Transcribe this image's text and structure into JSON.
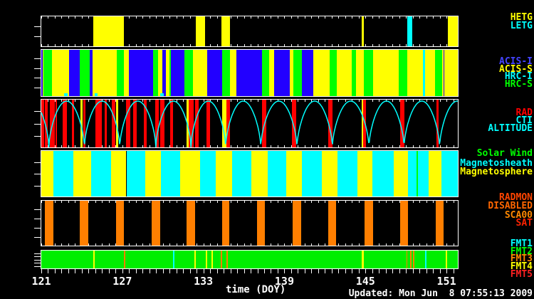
{
  "axis": {
    "xlabel": "time (DOY)",
    "x_start": 121,
    "x_end": 151.84,
    "minor_tick_step_days": 0.5,
    "label_ticks": [
      121,
      127,
      133,
      139,
      145,
      151
    ]
  },
  "footer": {
    "updated_text": "Updated: Mon Jun  8 07:55:13 2009"
  },
  "colors": {
    "background": "#000000",
    "frame": "#ffffff",
    "yellow": "#ffff00",
    "cyan": "#00ffff",
    "green": "#00ff00",
    "blue": "#2200ff",
    "red": "#ff0000",
    "orange": "#ff7f00",
    "fmt_green": "#00ee00"
  },
  "chart_data": {
    "type": "timeline-bands",
    "x_range": [
      121,
      151.84
    ],
    "panels": [
      {
        "id": "gratings",
        "labels": [
          {
            "text": "HETG",
            "color": "#ffff00"
          },
          {
            "text": "LETG",
            "color": "#00ffff"
          }
        ],
        "segments": [
          {
            "start": 124.84,
            "end": 127.12,
            "name": "HETG",
            "color": "#ffff00"
          },
          {
            "start": 132.42,
            "end": 133.12,
            "name": "HETG",
            "color": "#ffff00"
          },
          {
            "start": 134.33,
            "end": 134.97,
            "name": "HETG",
            "color": "#ffff00"
          },
          {
            "start": 144.72,
            "end": 144.86,
            "name": "HETG",
            "color": "#ffff00"
          },
          {
            "start": 148.12,
            "end": 148.49,
            "name": "LETG",
            "color": "#00ffff"
          },
          {
            "start": 151.1,
            "end": 151.84,
            "name": "HETG",
            "color": "#ffff00"
          }
        ]
      },
      {
        "id": "instruments",
        "labels": [
          {
            "text": "ACIS-I",
            "color": "#4444ff"
          },
          {
            "text": "ACIS-S",
            "color": "#ffff00"
          },
          {
            "text": "HRC-I",
            "color": "#00ffff"
          },
          {
            "text": "HRC-S",
            "color": "#00ff00"
          }
        ],
        "segments": [
          {
            "start": 121.0,
            "end": 121.09,
            "name": "ACIS-I",
            "color": "#2200ff"
          },
          {
            "start": 121.09,
            "end": 121.17,
            "name": "ACIS-S",
            "color": "#ffff00"
          },
          {
            "start": 121.17,
            "end": 121.78,
            "name": "HRC-S",
            "color": "#00ff00"
          },
          {
            "start": 121.78,
            "end": 123.04,
            "name": "ACIS-S",
            "color": "#ffff00"
          },
          {
            "start": 123.04,
            "end": 123.86,
            "name": "ACIS-I",
            "color": "#2200ff"
          },
          {
            "start": 123.86,
            "end": 124.6,
            "name": "HRC-S",
            "color": "#00ff00"
          },
          {
            "start": 124.6,
            "end": 124.8,
            "name": "ACIS-I",
            "color": "#2200ff"
          },
          {
            "start": 124.8,
            "end": 126.59,
            "name": "ACIS-S",
            "color": "#ffff00"
          },
          {
            "start": 126.59,
            "end": 127.09,
            "name": "HRC-S",
            "color": "#00ff00"
          },
          {
            "start": 127.09,
            "end": 127.5,
            "name": "ACIS-S",
            "color": "#ffff00"
          },
          {
            "start": 127.5,
            "end": 129.29,
            "name": "ACIS-I",
            "color": "#2200ff"
          },
          {
            "start": 129.29,
            "end": 129.65,
            "name": "HRC-S",
            "color": "#00ff00"
          },
          {
            "start": 129.65,
            "end": 129.98,
            "name": "ACIS-S",
            "color": "#ffff00"
          },
          {
            "start": 129.98,
            "end": 130.24,
            "name": "ACIS-I",
            "color": "#2200ff"
          },
          {
            "start": 130.24,
            "end": 130.48,
            "name": "ACIS-S",
            "color": "#ffff00"
          },
          {
            "start": 130.48,
            "end": 130.58,
            "name": "HRC-S",
            "color": "#00ff00"
          },
          {
            "start": 130.58,
            "end": 131.61,
            "name": "ACIS-I",
            "color": "#2200ff"
          },
          {
            "start": 131.61,
            "end": 132.23,
            "name": "HRC-S",
            "color": "#00ff00"
          },
          {
            "start": 132.23,
            "end": 133.3,
            "name": "ACIS-S",
            "color": "#ffff00"
          },
          {
            "start": 133.3,
            "end": 134.37,
            "name": "ACIS-I",
            "color": "#2200ff"
          },
          {
            "start": 134.37,
            "end": 134.95,
            "name": "HRC-S",
            "color": "#00ff00"
          },
          {
            "start": 134.95,
            "end": 135.47,
            "name": "ACIS-S",
            "color": "#ffff00"
          },
          {
            "start": 135.47,
            "end": 137.35,
            "name": "ACIS-I",
            "color": "#2200ff"
          },
          {
            "start": 137.35,
            "end": 137.89,
            "name": "HRC-S",
            "color": "#00ff00"
          },
          {
            "start": 137.89,
            "end": 138.25,
            "name": "ACIS-S",
            "color": "#ffff00"
          },
          {
            "start": 138.25,
            "end": 139.4,
            "name": "ACIS-I",
            "color": "#2200ff"
          },
          {
            "start": 139.4,
            "end": 139.64,
            "name": "ACIS-S",
            "color": "#ffff00"
          },
          {
            "start": 139.64,
            "end": 140.27,
            "name": "HRC-S",
            "color": "#00ff00"
          },
          {
            "start": 140.27,
            "end": 141.12,
            "name": "ACIS-I",
            "color": "#2200ff"
          },
          {
            "start": 141.12,
            "end": 142.33,
            "name": "ACIS-S",
            "color": "#ffff00"
          },
          {
            "start": 142.33,
            "end": 142.89,
            "name": "HRC-S",
            "color": "#00ff00"
          },
          {
            "start": 142.89,
            "end": 144.0,
            "name": "ACIS-S",
            "color": "#ffff00"
          },
          {
            "start": 144.0,
            "end": 144.28,
            "name": "HRC-S",
            "color": "#00ff00"
          },
          {
            "start": 144.28,
            "end": 144.88,
            "name": "ACIS-S",
            "color": "#ffff00"
          },
          {
            "start": 144.88,
            "end": 145.55,
            "name": "HRC-S",
            "color": "#00ff00"
          },
          {
            "start": 145.55,
            "end": 147.46,
            "name": "ACIS-S",
            "color": "#ffff00"
          },
          {
            "start": 147.46,
            "end": 148.11,
            "name": "HRC-S",
            "color": "#00ff00"
          },
          {
            "start": 148.11,
            "end": 149.25,
            "name": "ACIS-S",
            "color": "#ffff00"
          },
          {
            "start": 149.25,
            "end": 149.43,
            "name": "HRC-I",
            "color": "#00ffff"
          },
          {
            "start": 149.43,
            "end": 150.13,
            "name": "ACIS-S",
            "color": "#ffff00"
          },
          {
            "start": 150.13,
            "end": 150.67,
            "name": "HRC-S",
            "color": "#00ff00"
          },
          {
            "start": 150.67,
            "end": 150.76,
            "name": "ACIS-S",
            "color": "#ffff00"
          },
          {
            "start": 150.76,
            "end": 150.83,
            "name": "ACIS-I",
            "color": "#2200ff"
          },
          {
            "start": 150.83,
            "end": 151.84,
            "name": "ACIS-S",
            "color": "#ffff00"
          }
        ],
        "bottom_marks": [
          {
            "start": 122.7,
            "end": 122.93,
            "color": "#00ffff"
          },
          {
            "start": 124.94,
            "end": 125.15,
            "color": "#00ffff"
          },
          {
            "start": 129.82,
            "end": 130.08,
            "color": "#00ffff"
          }
        ]
      },
      {
        "id": "radiation",
        "labels": [
          {
            "text": "RAD",
            "color": "#ff0000"
          },
          {
            "text": "CTI",
            "color": "#00ffff"
          },
          {
            "text": "ALTITUDE",
            "color": "#00ffff"
          }
        ],
        "rad_bars": [
          [
            121.0,
            121.2
          ],
          [
            121.25,
            121.45
          ],
          [
            121.64,
            122.0
          ],
          [
            122.06,
            122.14
          ],
          [
            122.58,
            122.89
          ],
          [
            123.25,
            123.45
          ],
          [
            124.09,
            124.28
          ],
          [
            125.02,
            125.46
          ],
          [
            125.71,
            125.87
          ],
          [
            126.23,
            126.47
          ],
          [
            127.28,
            127.6
          ],
          [
            127.78,
            128.08
          ],
          [
            128.59,
            128.79
          ],
          [
            129.43,
            129.7
          ],
          [
            129.82,
            130.1
          ],
          [
            130.55,
            130.75
          ],
          [
            131.91,
            132.27
          ],
          [
            132.41,
            132.67
          ],
          [
            133.22,
            133.52
          ],
          [
            134.73,
            134.97
          ],
          [
            137.34,
            137.65
          ],
          [
            139.56,
            139.86
          ],
          [
            142.24,
            142.58
          ],
          [
            144.85,
            145.06
          ],
          [
            147.56,
            147.86
          ],
          [
            150.24,
            150.44
          ]
        ],
        "cti_bars": [
          [
            123.89,
            124.07
          ],
          [
            126.51,
            126.67
          ],
          [
            131.77,
            131.91
          ],
          [
            134.39,
            134.73
          ],
          [
            144.7,
            144.85
          ]
        ],
        "altitude_curve": {
          "color": "#00ffff",
          "perigee_times": [
            118.94,
            121.56,
            124.19,
            126.81,
            129.48,
            132.08,
            134.65,
            137.25,
            139.93,
            142.55,
            145.26,
            147.86,
            150.49,
            153.11
          ]
        }
      },
      {
        "id": "geospace",
        "labels": [
          {
            "text": "Solar Wind",
            "color": "#00ff00"
          },
          {
            "text": "Magnetosheath",
            "color": "#00ffff"
          },
          {
            "text": "Magnetosphere",
            "color": "#ffff00"
          }
        ],
        "segments": [
          {
            "start": 121.0,
            "end": 121.9,
            "name": "Magnetosphere",
            "color": "#ffff00"
          },
          {
            "start": 121.9,
            "end": 123.35,
            "name": "Magnetosheath",
            "color": "#00ffff"
          },
          {
            "start": 123.35,
            "end": 124.67,
            "name": "Magnetosphere",
            "color": "#ffff00"
          },
          {
            "start": 124.67,
            "end": 126.16,
            "name": "Magnetosheath",
            "color": "#00ffff"
          },
          {
            "start": 126.16,
            "end": 127.3,
            "name": "Magnetosphere",
            "color": "#ffff00"
          },
          {
            "start": 127.3,
            "end": 128.7,
            "name": "Magnetosheath",
            "color": "#00ffff"
          },
          {
            "start": 128.7,
            "end": 129.84,
            "name": "Magnetosphere",
            "color": "#ffff00"
          },
          {
            "start": 129.84,
            "end": 131.3,
            "name": "Magnetosheath",
            "color": "#00ffff"
          },
          {
            "start": 131.3,
            "end": 132.74,
            "name": "Magnetosphere",
            "color": "#ffff00"
          },
          {
            "start": 132.74,
            "end": 133.93,
            "name": "Magnetosheath",
            "color": "#00ffff"
          },
          {
            "start": 133.93,
            "end": 135.11,
            "name": "Magnetosphere",
            "color": "#ffff00"
          },
          {
            "start": 135.11,
            "end": 136.56,
            "name": "Magnetosheath",
            "color": "#00ffff"
          },
          {
            "start": 136.56,
            "end": 137.74,
            "name": "Magnetosphere",
            "color": "#ffff00"
          },
          {
            "start": 137.74,
            "end": 139.14,
            "name": "Magnetosheath",
            "color": "#00ffff"
          },
          {
            "start": 139.14,
            "end": 140.28,
            "name": "Magnetosphere",
            "color": "#ffff00"
          },
          {
            "start": 140.28,
            "end": 141.77,
            "name": "Magnetosheath",
            "color": "#00ffff"
          },
          {
            "start": 141.77,
            "end": 142.91,
            "name": "Magnetosphere",
            "color": "#ffff00"
          },
          {
            "start": 142.91,
            "end": 144.4,
            "name": "Magnetosheath",
            "color": "#00ffff"
          },
          {
            "start": 144.4,
            "end": 145.54,
            "name": "Magnetosphere",
            "color": "#ffff00"
          },
          {
            "start": 145.54,
            "end": 147.12,
            "name": "Magnetosheath",
            "color": "#00ffff"
          },
          {
            "start": 147.12,
            "end": 148.17,
            "name": "Magnetosphere",
            "color": "#ffff00"
          },
          {
            "start": 148.17,
            "end": 148.79,
            "name": "Magnetosheath",
            "color": "#00ffff"
          },
          {
            "start": 148.79,
            "end": 148.88,
            "name": "Solar Wind",
            "color": "#00ff00"
          },
          {
            "start": 148.88,
            "end": 149.67,
            "name": "Magnetosheath",
            "color": "#00ffff"
          },
          {
            "start": 149.67,
            "end": 150.63,
            "name": "Magnetosphere",
            "color": "#ffff00"
          },
          {
            "start": 150.63,
            "end": 151.84,
            "name": "Magnetosheath",
            "color": "#00ffff"
          }
        ]
      },
      {
        "id": "radmon",
        "labels": [
          {
            "text": "RADMON",
            "color": "#ff4400"
          },
          {
            "text": "DISABLED",
            "color": "#ff6600"
          },
          {
            "text": "SCA00",
            "color": "#ff8800"
          },
          {
            "text": "SAT",
            "color": "#ff2200"
          }
        ],
        "bars_color": "#ff7f00",
        "bars": [
          [
            121.24,
            121.88
          ],
          [
            123.85,
            124.46
          ],
          [
            126.51,
            127.12
          ],
          [
            129.17,
            129.8
          ],
          [
            131.77,
            132.38
          ],
          [
            134.37,
            134.93
          ],
          [
            136.95,
            137.55
          ],
          [
            139.63,
            140.23
          ],
          [
            142.24,
            142.85
          ],
          [
            144.96,
            145.55
          ],
          [
            147.56,
            148.15
          ],
          [
            150.2,
            150.78
          ]
        ]
      },
      {
        "id": "format",
        "labels": [
          {
            "text": "FMT1",
            "color": "#00ffff"
          },
          {
            "text": "FMT2",
            "color": "#00ff00"
          },
          {
            "text": "FMT3",
            "color": "#ff8800"
          },
          {
            "text": "FMT4",
            "color": "#ffff00"
          },
          {
            "text": "FMT5",
            "color": "#ff2222"
          }
        ],
        "base_format": "FMT2",
        "base_color": "#00ee00",
        "ticks": [
          {
            "t": 124.87,
            "name": "FMT4",
            "color": "#ffff00"
          },
          {
            "t": 127.12,
            "name": "FMT3",
            "color": "#ff7f00"
          },
          {
            "t": 130.74,
            "name": "FMT1",
            "color": "#00ffff"
          },
          {
            "t": 132.35,
            "name": "FMT4",
            "color": "#ffff00"
          },
          {
            "t": 133.16,
            "name": "FMT4",
            "color": "#ffff00"
          },
          {
            "t": 133.62,
            "name": "FMT4",
            "color": "#ffff00"
          },
          {
            "t": 134.28,
            "name": "FMT3",
            "color": "#ff7f00"
          },
          {
            "t": 134.73,
            "name": "FMT3",
            "color": "#ff7f00"
          },
          {
            "t": 144.7,
            "name": "FMT4",
            "color": "#ffff00"
          },
          {
            "t": 144.8,
            "name": "FMT4",
            "color": "#ffff00"
          },
          {
            "t": 148.02,
            "name": "FMT3",
            "color": "#ff7f00"
          },
          {
            "t": 148.33,
            "name": "FMT3",
            "color": "#ff7f00"
          },
          {
            "t": 148.52,
            "name": "FMT3",
            "color": "#ff7f00"
          },
          {
            "t": 149.43,
            "name": "FMT1",
            "color": "#00ffff"
          },
          {
            "t": 150.94,
            "name": "FMT4",
            "color": "#ffff00"
          }
        ]
      }
    ]
  }
}
